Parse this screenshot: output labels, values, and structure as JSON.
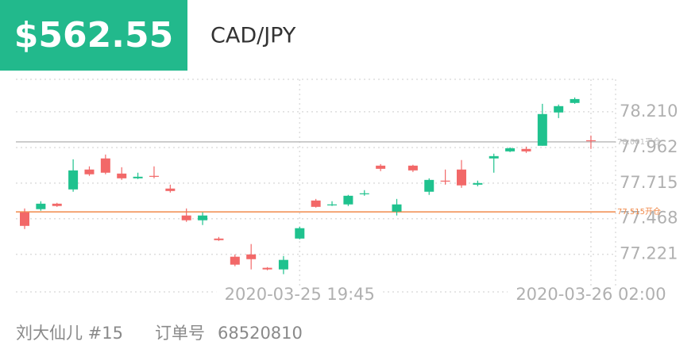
{
  "header": {
    "price": "$562.55",
    "symbol": "CAD/JPY"
  },
  "chart_data": {
    "type": "candlestick",
    "categories": [
      null,
      null,
      null,
      null,
      null,
      null,
      null,
      null,
      null,
      null,
      null,
      null,
      null,
      null,
      null,
      null,
      null,
      "2020-03-25 19:45",
      null,
      null,
      null,
      null,
      null,
      null,
      null,
      null,
      null,
      null,
      null,
      null,
      null,
      null,
      null,
      null,
      null,
      "2020-03-26 02:00"
    ],
    "open": [
      77.512,
      77.534,
      77.572,
      77.671,
      77.809,
      77.886,
      77.781,
      77.748,
      77.765,
      77.677,
      77.49,
      77.457,
      77.33,
      77.204,
      77.22,
      77.127,
      77.116,
      77.33,
      77.594,
      77.561,
      77.567,
      77.638,
      77.836,
      77.517,
      77.836,
      77.655,
      77.732,
      77.809,
      77.704,
      77.886,
      77.935,
      77.952,
      77.974,
      78.205,
      78.271,
      78.012
    ],
    "high": [
      77.539,
      77.589,
      77.578,
      77.88,
      77.831,
      77.913,
      77.825,
      77.787,
      77.831,
      77.704,
      77.539,
      77.512,
      77.341,
      77.22,
      77.292,
      77.132,
      77.209,
      77.413,
      77.605,
      77.589,
      77.633,
      77.666,
      77.847,
      77.605,
      77.842,
      77.748,
      77.809,
      77.875,
      77.732,
      77.919,
      77.963,
      77.968,
      78.265,
      78.26,
      78.309,
      78.045
    ],
    "low": [
      77.396,
      77.523,
      77.55,
      77.655,
      77.765,
      77.776,
      77.737,
      77.743,
      77.748,
      77.649,
      77.446,
      77.424,
      77.314,
      77.138,
      77.116,
      77.11,
      77.083,
      77.325,
      77.545,
      77.556,
      77.556,
      77.627,
      77.798,
      77.49,
      77.792,
      77.633,
      77.704,
      77.682,
      77.693,
      77.787,
      77.93,
      77.924,
      77.974,
      78.166,
      78.265,
      77.952
    ],
    "close": [
      77.418,
      77.572,
      77.556,
      77.803,
      77.776,
      77.787,
      77.748,
      77.759,
      77.759,
      77.66,
      77.457,
      77.49,
      77.319,
      77.149,
      77.187,
      77.116,
      77.182,
      77.402,
      77.55,
      77.567,
      77.627,
      77.644,
      77.814,
      77.567,
      77.803,
      77.737,
      77.726,
      77.699,
      77.715,
      77.902,
      77.957,
      77.935,
      78.194,
      78.249,
      78.298,
      78.007
    ],
    "up_color": "#1fc28e",
    "down_color": "#f26868",
    "ylim": [
      76.96,
      78.435
    ],
    "yticks": [
      {
        "value": 78.21,
        "label": "78.210"
      },
      {
        "value": 77.962,
        "label": "77.962"
      },
      {
        "value": 77.715,
        "label": "77.715"
      },
      {
        "value": 77.468,
        "label": "77.468"
      },
      {
        "value": 77.221,
        "label": "77.221"
      }
    ],
    "grid": true,
    "lines": [
      {
        "value": 78.001,
        "label": "78.001平仓",
        "color": "#bdbdbd"
      },
      {
        "value": 77.515,
        "label": "77.515开仓",
        "color": "#f08a4b"
      }
    ]
  },
  "footer": {
    "name": "刘大仙儿 #15",
    "order_label": "订单号",
    "order_id": "68520810"
  }
}
